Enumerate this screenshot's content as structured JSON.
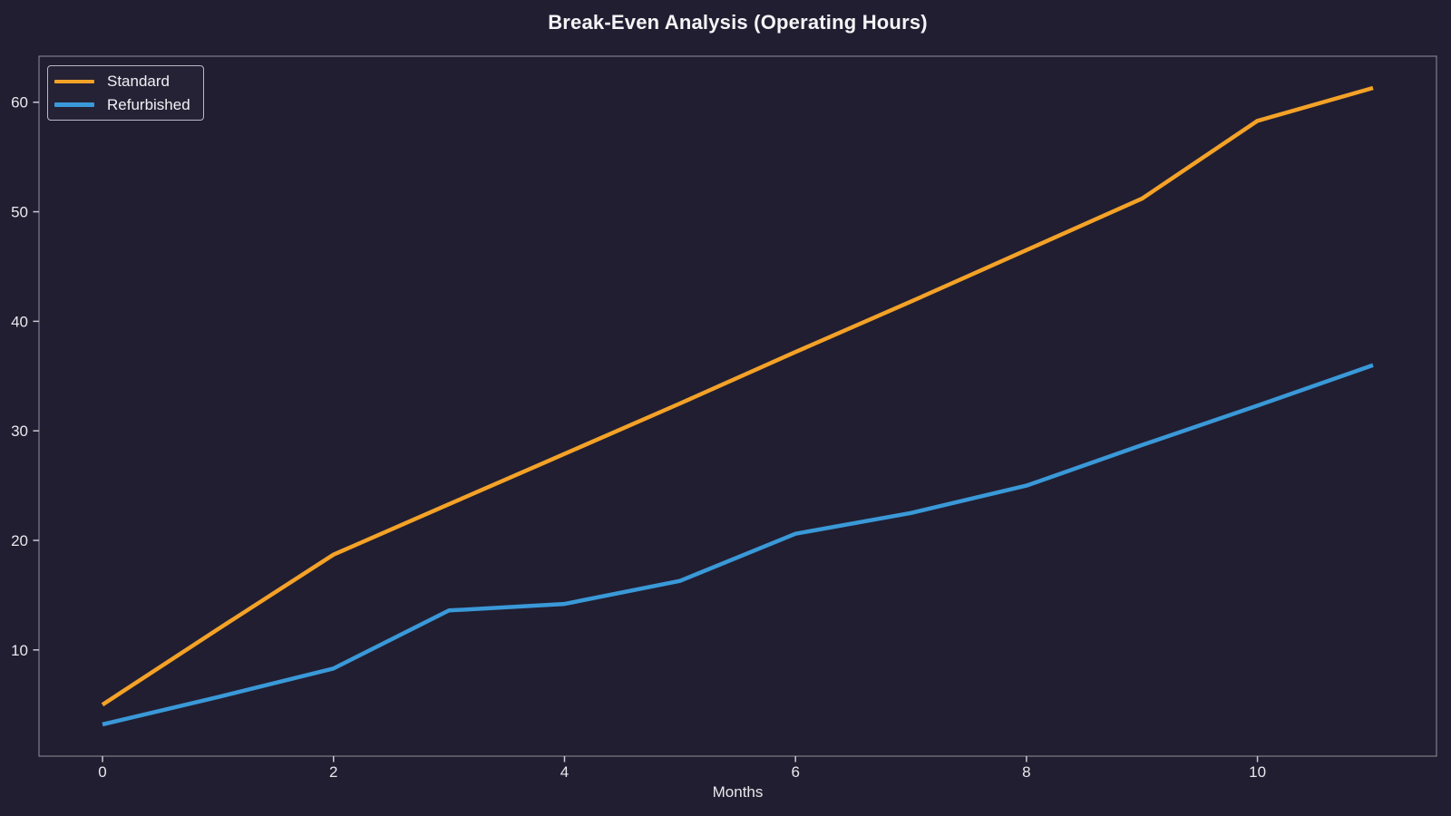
{
  "chart_data": {
    "type": "line",
    "title": "Break-Even Analysis (Operating Hours)",
    "xlabel": "Months",
    "ylabel": "",
    "x": [
      0,
      1,
      2,
      3,
      4,
      5,
      6,
      7,
      8,
      9,
      10,
      11
    ],
    "series": [
      {
        "name": "Standard",
        "color": "#F4A227",
        "values": [
          5.0,
          11.9,
          18.7,
          23.3,
          27.9,
          32.5,
          37.2,
          41.8,
          46.5,
          51.2,
          58.3,
          61.3
        ]
      },
      {
        "name": "Refurbished",
        "color": "#3A99D8",
        "values": [
          3.2,
          5.7,
          8.3,
          13.6,
          14.2,
          16.3,
          20.6,
          22.5,
          25.0,
          28.7,
          32.3,
          36.0
        ]
      }
    ],
    "xticks": [
      0,
      2,
      4,
      6,
      8,
      10
    ],
    "yticks": [
      10,
      20,
      30,
      40,
      50,
      60
    ],
    "xlim": [
      -0.55,
      11.55
    ],
    "ylim": [
      0.3,
      64.2
    ],
    "grid": false,
    "legend_position": "upper left",
    "line_width": 4.5
  },
  "colors": {
    "background": "#211E31",
    "spine": "#7F7D8A",
    "tick_mark": "#C9C9D2",
    "tick_label": "#E8E8EC",
    "title_text": "#F5F5F7",
    "legend_border": "#B9B9C4",
    "legend_face": "#262236"
  }
}
